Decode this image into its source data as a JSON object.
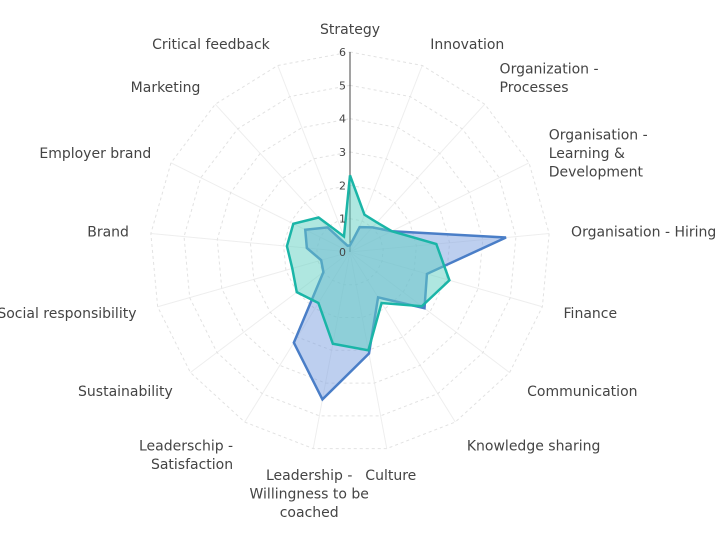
{
  "chart_data": {
    "type": "radar",
    "categories": [
      [
        "Strategy"
      ],
      [
        "Innovation"
      ],
      [
        "Organization -",
        "Processes"
      ],
      [
        "Organisation -",
        "Learning &",
        "Development"
      ],
      [
        "Organisation - Hiring"
      ],
      [
        "Finance"
      ],
      [
        "Communication"
      ],
      [
        "Knowledge sharing"
      ],
      [
        "Culture"
      ],
      [
        "Leadership -",
        "Willingness to be",
        "coached"
      ],
      [
        "Leaderschip -",
        "Satisfaction"
      ],
      [
        "Sustainability"
      ],
      [
        "Social responsibility"
      ],
      [
        "Brand"
      ],
      [
        "Employer brand"
      ],
      [
        "Marketing"
      ],
      [
        "Critical feedback"
      ]
    ],
    "radial_ticks": [
      0,
      1,
      2,
      3,
      4,
      5,
      6
    ],
    "radial_range": [
      0,
      6
    ],
    "grid": true,
    "legend": "none",
    "series": [
      {
        "values": [
          0.2,
          0.8,
          1.0,
          1.4,
          4.7,
          2.4,
          2.8,
          1.6,
          3.1,
          4.5,
          3.2,
          1.0,
          0.9,
          1.3,
          1.5,
          1.0,
          0.2
        ],
        "line_color": "#4a7ec7",
        "fill_color": "#7b9fe0"
      },
      {
        "values": [
          2.3,
          1.2,
          1.2,
          1.4,
          2.6,
          3.1,
          2.7,
          1.8,
          3.0,
          2.8,
          1.8,
          2.0,
          1.8,
          1.9,
          1.9,
          1.4,
          0.5
        ],
        "line_color": "#1ab5a7",
        "fill_color": "#5fd0c1"
      }
    ]
  }
}
